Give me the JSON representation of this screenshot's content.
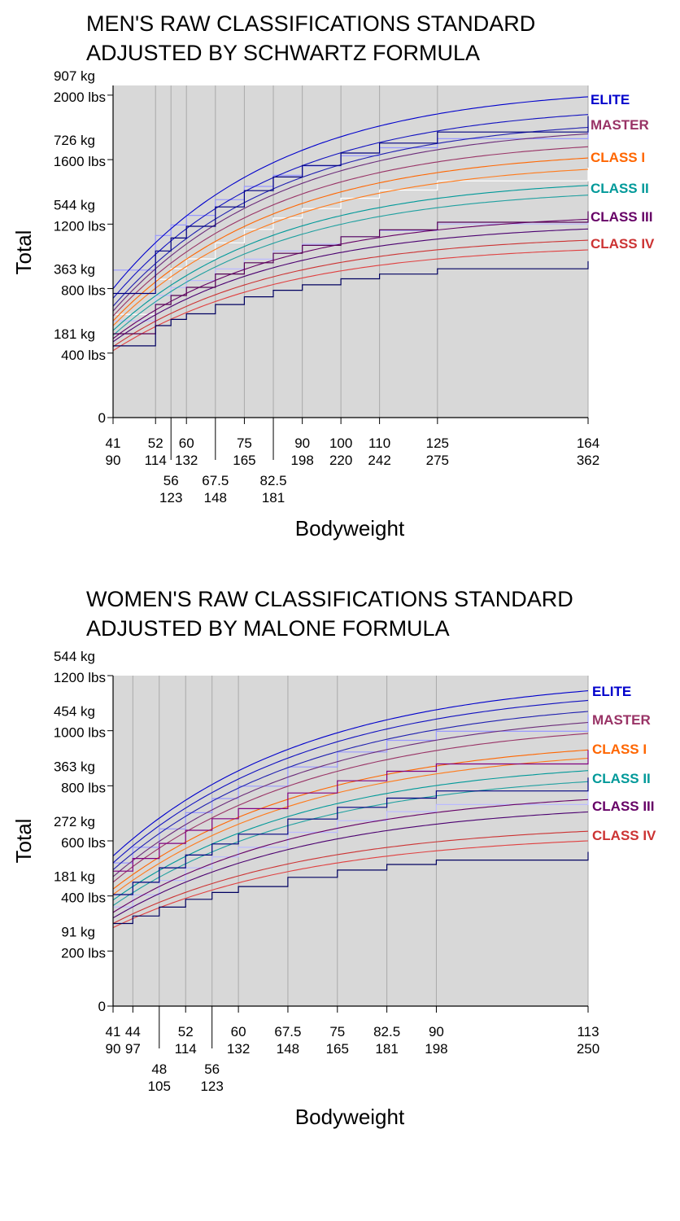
{
  "chart_data": [
    {
      "type": "line",
      "title_lines": [
        "MEN'S RAW CLASSIFICATIONS STANDARD",
        "ADJUSTED BY SCHWARTZ FORMULA"
      ],
      "xlabel": "Bodyweight",
      "ylabel": "Total",
      "xlim": [
        41,
        164
      ],
      "ylim": [
        0,
        2060
      ],
      "y_ticks": [
        {
          "value": 0,
          "label_kg": "",
          "label_lbs": "0"
        },
        {
          "value": 400,
          "label_kg": "181 kg",
          "label_lbs": "400 lbs"
        },
        {
          "value": 800,
          "label_kg": "363 kg",
          "label_lbs": "800 lbs"
        },
        {
          "value": 1200,
          "label_kg": "544 kg",
          "label_lbs": "1200 lbs"
        },
        {
          "value": 1600,
          "label_kg": "726 kg",
          "label_lbs": "1600 lbs"
        },
        {
          "value": 2000,
          "label_kg": "907 kg",
          "label_lbs": "2000 lbs"
        }
      ],
      "x_ticks": [
        {
          "value": 41,
          "kg": "41",
          "lbs": "90",
          "row": 0
        },
        {
          "value": 52,
          "kg": "52",
          "lbs": "114",
          "row": 0
        },
        {
          "value": 56,
          "kg": "56",
          "lbs": "123",
          "row": 1
        },
        {
          "value": 60,
          "kg": "60",
          "lbs": "132",
          "row": 0
        },
        {
          "value": 67.5,
          "kg": "67.5",
          "lbs": "148",
          "row": 1
        },
        {
          "value": 75,
          "kg": "75",
          "lbs": "165",
          "row": 0
        },
        {
          "value": 82.5,
          "kg": "82.5",
          "lbs": "181",
          "row": 1
        },
        {
          "value": 90,
          "kg": "90",
          "lbs": "198",
          "row": 0
        },
        {
          "value": 100,
          "kg": "100",
          "lbs": "220",
          "row": 0
        },
        {
          "value": 110,
          "kg": "110",
          "lbs": "242",
          "row": 0
        },
        {
          "value": 125,
          "kg": "125",
          "lbs": "275",
          "row": 0
        },
        {
          "value": 164,
          "kg": "164",
          "lbs": "362",
          "row": 0
        }
      ],
      "weight_classes": [
        41,
        52,
        56,
        60,
        67.5,
        75,
        82.5,
        90,
        100,
        110,
        125,
        164
      ],
      "curve_shape": {
        "a": 0.83,
        "k": 43
      },
      "classes": [
        {
          "name": "ELITE",
          "color": "#0000cc",
          "curves": [
            {
              "color": "#0000cc",
              "y41": 800,
              "y164": 1990
            },
            {
              "color": "#1010c0",
              "y41": 740,
              "y164": 1880
            },
            {
              "color": "#2020b0",
              "y41": 690,
              "y164": 1800
            }
          ]
        },
        {
          "name": "MASTER",
          "color": "#993366",
          "curves": [
            {
              "color": "#6b2c7a",
              "y41": 660,
              "y164": 1760
            },
            {
              "color": "#993366",
              "y41": 630,
              "y164": 1680
            }
          ]
        },
        {
          "name": "CLASS I",
          "color": "#ff6600",
          "curves": [
            {
              "color": "#ff6600",
              "y41": 600,
              "y164": 1610
            },
            {
              "color": "#ff7a1a",
              "y41": 570,
              "y164": 1540
            }
          ]
        },
        {
          "name": "CLASS II",
          "color": "#009999",
          "curves": [
            {
              "color": "#009999",
              "y41": 540,
              "y164": 1440
            },
            {
              "color": "#20a0a0",
              "y41": 510,
              "y164": 1380
            }
          ]
        },
        {
          "name": "CLASS III",
          "color": "#660066",
          "curves": [
            {
              "color": "#660066",
              "y41": 490,
              "y164": 1230
            },
            {
              "color": "#4b0070",
              "y41": 470,
              "y164": 1170
            }
          ]
        },
        {
          "name": "CLASS IV",
          "color": "#cc3333",
          "curves": [
            {
              "color": "#cc3333",
              "y41": 440,
              "y164": 1100
            },
            {
              "color": "#e04040",
              "y41": 415,
              "y164": 1040
            }
          ]
        }
      ],
      "step_series": [
        {
          "color": "#000080",
          "y41": 770,
          "y164": 1870
        },
        {
          "color": "#550055",
          "y41": 520,
          "y164": 1280
        },
        {
          "color": "#000060",
          "y41": 445,
          "y164": 970
        }
      ],
      "ghost_series": [
        {
          "color": "#9999ff",
          "y41": 915,
          "y164": 1810
        },
        {
          "color": "#ffffff",
          "y41": 640,
          "y164": 1550
        },
        {
          "color": "#bbbbff",
          "y41": 600,
          "y164": 1260
        }
      ]
    },
    {
      "type": "line",
      "title_lines": [
        "WOMEN'S RAW CLASSIFICATIONS STANDARD",
        "ADJUSTED BY MALONE FORMULA"
      ],
      "xlabel": "Bodyweight",
      "ylabel": "Total",
      "xlim": [
        41,
        113
      ],
      "ylim": [
        0,
        1200
      ],
      "y_ticks": [
        {
          "value": 0,
          "label_kg": "",
          "label_lbs": "0"
        },
        {
          "value": 200,
          "label_kg": "91 kg",
          "label_lbs": "200 lbs"
        },
        {
          "value": 400,
          "label_kg": "181 kg",
          "label_lbs": "400 lbs"
        },
        {
          "value": 600,
          "label_kg": "272 kg",
          "label_lbs": "600 lbs"
        },
        {
          "value": 800,
          "label_kg": "363 kg",
          "label_lbs": "800 lbs"
        },
        {
          "value": 1000,
          "label_kg": "454 kg",
          "label_lbs": "1000 lbs"
        },
        {
          "value": 1200,
          "label_kg": "544 kg",
          "label_lbs": "1200 lbs"
        }
      ],
      "x_ticks": [
        {
          "value": 41,
          "kg": "41",
          "lbs": "90",
          "row": 0
        },
        {
          "value": 44,
          "kg": "44",
          "lbs": "97",
          "row": 0
        },
        {
          "value": 48,
          "kg": "48",
          "lbs": "105",
          "row": 1
        },
        {
          "value": 52,
          "kg": "52",
          "lbs": "114",
          "row": 0
        },
        {
          "value": 56,
          "kg": "56",
          "lbs": "123",
          "row": 1
        },
        {
          "value": 60,
          "kg": "60",
          "lbs": "132",
          "row": 0
        },
        {
          "value": 67.5,
          "kg": "67.5",
          "lbs": "148",
          "row": 0
        },
        {
          "value": 75,
          "kg": "75",
          "lbs": "165",
          "row": 0
        },
        {
          "value": 82.5,
          "kg": "82.5",
          "lbs": "181",
          "row": 0
        },
        {
          "value": 90,
          "kg": "90",
          "lbs": "198",
          "row": 0
        },
        {
          "value": 113,
          "kg": "113",
          "lbs": "250",
          "row": 0
        }
      ],
      "weight_classes": [
        41,
        44,
        48,
        52,
        56,
        60,
        67.5,
        75,
        82.5,
        90,
        113
      ],
      "curve_shape": {
        "a": 0.45,
        "k": 30
      },
      "classes": [
        {
          "name": "ELITE",
          "color": "#0000cc",
          "curves": [
            {
              "color": "#0000cc",
              "y41": 545,
              "y164": 1145
            },
            {
              "color": "#1010c0",
              "y41": 520,
              "y164": 1110
            },
            {
              "color": "#2020b0",
              "y41": 495,
              "y164": 1070
            }
          ]
        },
        {
          "name": "MASTER",
          "color": "#993366",
          "curves": [
            {
              "color": "#6b2c7a",
              "y41": 470,
              "y164": 1030
            },
            {
              "color": "#993366",
              "y41": 450,
              "y164": 990
            }
          ]
        },
        {
          "name": "CLASS I",
          "color": "#ff6600",
          "curves": [
            {
              "color": "#ff6600",
              "y41": 425,
              "y164": 930
            },
            {
              "color": "#ff7a1a",
              "y41": 405,
              "y164": 900
            }
          ]
        },
        {
          "name": "CLASS II",
          "color": "#009999",
          "curves": [
            {
              "color": "#009999",
              "y41": 385,
              "y164": 855
            },
            {
              "color": "#20a0a0",
              "y41": 365,
              "y164": 815
            }
          ]
        },
        {
          "name": "CLASS III",
          "color": "#660066",
          "curves": [
            {
              "color": "#660066",
              "y41": 340,
              "y164": 750
            },
            {
              "color": "#4b0070",
              "y41": 320,
              "y164": 705
            }
          ]
        },
        {
          "name": "CLASS IV",
          "color": "#cc3333",
          "curves": [
            {
              "color": "#cc3333",
              "y41": 300,
              "y164": 635
            },
            {
              "color": "#e04040",
              "y41": 285,
              "y164": 600
            }
          ]
        }
      ],
      "step_series": [
        {
          "color": "#800080",
          "y41": 490,
          "y164": 930
        },
        {
          "color": "#000080",
          "y41": 405,
          "y164": 830
        },
        {
          "color": "#000060",
          "y41": 300,
          "y164": 560
        }
      ],
      "ghost_series": [
        {
          "color": "#9999ff",
          "y41": 520,
          "y164": 1060
        },
        {
          "color": "#bbbbff",
          "y41": 360,
          "y164": 780
        }
      ]
    }
  ]
}
